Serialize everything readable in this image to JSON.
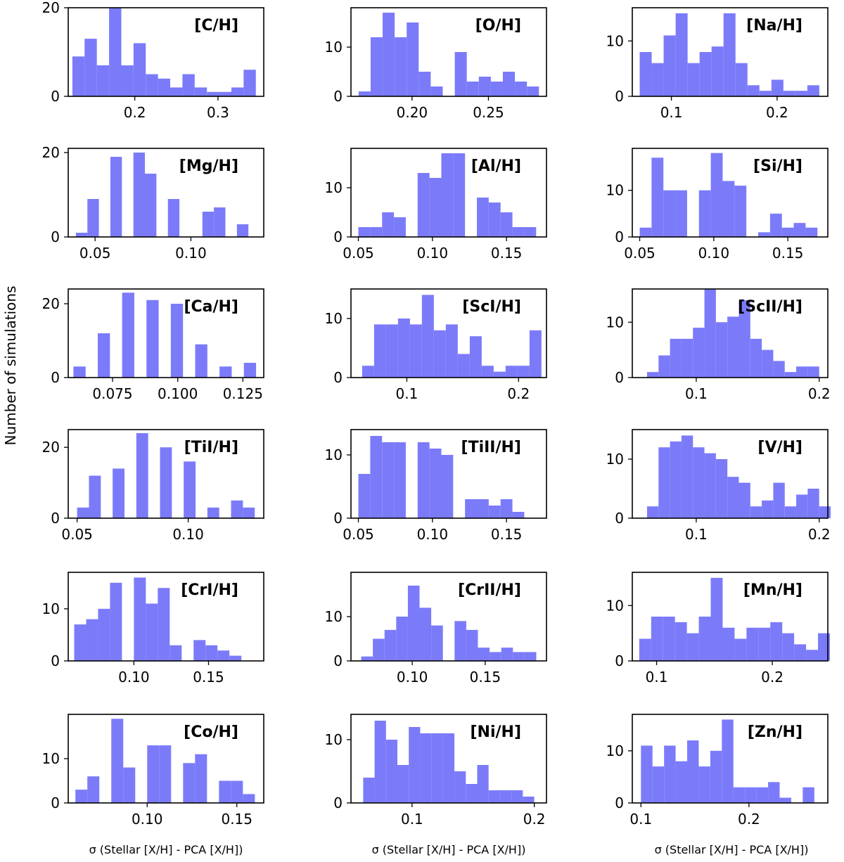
{
  "figure": {
    "ylabel": "Number of simulations",
    "xlabels": [
      "σ (Stellar [X/H] - PCA [X/H])",
      "σ (Stellar [X/H] - PCA [X/H])",
      "σ (Stellar [X/H] - PCA [X/H])"
    ],
    "bar_color": "#7b7bfa"
  },
  "chart_data": [
    {
      "type": "bar",
      "title": "[C/H]",
      "xlim": [
        0.12,
        0.355
      ],
      "ylim": [
        0,
        20
      ],
      "xticks": [
        {
          "v": 0.2,
          "l": "0.2"
        },
        {
          "v": 0.3,
          "l": "0.3"
        }
      ],
      "yticks": [
        {
          "v": 0,
          "l": "0"
        },
        {
          "v": 20,
          "l": "20"
        }
      ],
      "bin_start": 0.125,
      "bin_width": 0.0147,
      "values": [
        9,
        13,
        7,
        20,
        7,
        12,
        5,
        4,
        2,
        5,
        2,
        1,
        1,
        2,
        6
      ]
    },
    {
      "type": "bar",
      "title": "[O/H]",
      "xlim": [
        0.16,
        0.288
      ],
      "ylim": [
        0,
        18
      ],
      "xticks": [
        {
          "v": 0.2,
          "l": "0.20"
        },
        {
          "v": 0.25,
          "l": "0.25"
        }
      ],
      "yticks": [
        {
          "v": 0,
          "l": "0"
        },
        {
          "v": 10,
          "l": "10"
        }
      ],
      "bin_start": 0.165,
      "bin_width": 0.00787,
      "values": [
        1,
        12,
        17,
        12,
        15,
        5,
        2,
        0,
        9,
        3,
        4,
        3,
        5,
        3,
        2
      ]
    },
    {
      "type": "bar",
      "title": "[Na/H]",
      "xlim": [
        0.063,
        0.248
      ],
      "ylim": [
        0,
        16
      ],
      "xticks": [
        {
          "v": 0.1,
          "l": "0.1"
        },
        {
          "v": 0.2,
          "l": "0.2"
        }
      ],
      "yticks": [
        {
          "v": 0,
          "l": "0"
        },
        {
          "v": 10,
          "l": "10"
        }
      ],
      "bin_start": 0.07,
      "bin_width": 0.01133,
      "values": [
        8,
        6,
        11,
        15,
        6,
        8,
        9,
        15,
        6,
        2,
        1,
        3,
        1,
        1,
        2
      ]
    },
    {
      "type": "bar",
      "title": "[Mg/H]",
      "xlim": [
        0.036,
        0.138
      ],
      "ylim": [
        0,
        21
      ],
      "xticks": [
        {
          "v": 0.05,
          "l": "0.05"
        },
        {
          "v": 0.1,
          "l": "0.10"
        }
      ],
      "yticks": [
        {
          "v": 0,
          "l": "0"
        },
        {
          "v": 20,
          "l": "20"
        }
      ],
      "bin_start": 0.04,
      "bin_width": 0.006,
      "values": [
        1,
        9,
        0,
        19,
        0,
        20,
        15,
        0,
        9,
        0,
        0,
        6,
        7,
        0,
        3
      ]
    },
    {
      "type": "bar",
      "title": "[Al/H]",
      "xlim": [
        0.045,
        0.177
      ],
      "ylim": [
        0,
        18
      ],
      "xticks": [
        {
          "v": 0.05,
          "l": "0.05"
        },
        {
          "v": 0.1,
          "l": "0.10"
        },
        {
          "v": 0.15,
          "l": "0.15"
        }
      ],
      "yticks": [
        {
          "v": 0,
          "l": "0"
        },
        {
          "v": 10,
          "l": "10"
        }
      ],
      "bin_start": 0.05,
      "bin_width": 0.008,
      "values": [
        2,
        2,
        5,
        4,
        0,
        13,
        12,
        17,
        17,
        0,
        8,
        7,
        5,
        2,
        2
      ]
    },
    {
      "type": "bar",
      "title": "[Si/H]",
      "xlim": [
        0.045,
        0.177
      ],
      "ylim": [
        0,
        19
      ],
      "xticks": [
        {
          "v": 0.05,
          "l": "0.05"
        },
        {
          "v": 0.1,
          "l": "0.10"
        },
        {
          "v": 0.15,
          "l": "0.15"
        }
      ],
      "yticks": [
        {
          "v": 0,
          "l": "0"
        },
        {
          "v": 10,
          "l": "10"
        }
      ],
      "bin_start": 0.05,
      "bin_width": 0.008,
      "values": [
        2,
        17,
        10,
        10,
        0,
        10,
        18,
        12,
        11,
        0,
        1,
        5,
        2,
        3,
        2
      ]
    },
    {
      "type": "bar",
      "title": "[Ca/H]",
      "xlim": [
        0.058,
        0.133
      ],
      "ylim": [
        0,
        24
      ],
      "xticks": [
        {
          "v": 0.075,
          "l": "0.075"
        },
        {
          "v": 0.1,
          "l": "0.100"
        },
        {
          "v": 0.125,
          "l": "0.125"
        }
      ],
      "yticks": [
        {
          "v": 0,
          "l": "0"
        },
        {
          "v": 20,
          "l": "20"
        }
      ],
      "bin_start": 0.06,
      "bin_width": 0.00467,
      "values": [
        3,
        0,
        12,
        0,
        23,
        0,
        21,
        0,
        20,
        0,
        9,
        0,
        3,
        0,
        4
      ]
    },
    {
      "type": "bar",
      "title": "[ScI/H]",
      "xlim": [
        0.05,
        0.225
      ],
      "ylim": [
        0,
        15
      ],
      "xticks": [
        {
          "v": 0.1,
          "l": "0.1"
        },
        {
          "v": 0.2,
          "l": "0.2"
        }
      ],
      "yticks": [
        {
          "v": 0,
          "l": "0"
        },
        {
          "v": 10,
          "l": "10"
        }
      ],
      "bin_start": 0.06,
      "bin_width": 0.0107,
      "values": [
        2,
        9,
        9,
        10,
        9,
        14,
        8,
        9,
        4,
        7,
        2,
        1,
        2,
        2,
        8
      ]
    },
    {
      "type": "bar",
      "title": "[ScII/H]",
      "xlim": [
        0.048,
        0.207
      ],
      "ylim": [
        0,
        16
      ],
      "xticks": [
        {
          "v": 0.1,
          "l": "0.1"
        },
        {
          "v": 0.2,
          "l": "0.2"
        }
      ],
      "yticks": [
        {
          "v": 0,
          "l": "0"
        },
        {
          "v": 10,
          "l": "10"
        }
      ],
      "bin_start": 0.06,
      "bin_width": 0.00933,
      "values": [
        1,
        4,
        7,
        7,
        9,
        16,
        10,
        11,
        14,
        7,
        5,
        3,
        1,
        2,
        2
      ]
    },
    {
      "type": "bar",
      "title": "[TiI/H]",
      "xlim": [
        0.046,
        0.134
      ],
      "ylim": [
        0,
        25
      ],
      "xticks": [
        {
          "v": 0.05,
          "l": "0.05"
        },
        {
          "v": 0.1,
          "l": "0.10"
        }
      ],
      "yticks": [
        {
          "v": 0,
          "l": "0"
        },
        {
          "v": 20,
          "l": "20"
        }
      ],
      "bin_start": 0.05,
      "bin_width": 0.00533,
      "values": [
        3,
        12,
        0,
        14,
        0,
        24,
        0,
        20,
        0,
        16,
        0,
        3,
        0,
        5,
        3
      ]
    },
    {
      "type": "bar",
      "title": "[TiII/H]",
      "xlim": [
        0.045,
        0.177
      ],
      "ylim": [
        0,
        14
      ],
      "xticks": [
        {
          "v": 0.05,
          "l": "0.05"
        },
        {
          "v": 0.1,
          "l": "0.10"
        },
        {
          "v": 0.15,
          "l": "0.15"
        }
      ],
      "yticks": [
        {
          "v": 0,
          "l": "0"
        },
        {
          "v": 10,
          "l": "10"
        }
      ],
      "bin_start": 0.05,
      "bin_width": 0.008,
      "values": [
        7,
        13,
        12,
        12,
        0,
        12,
        11,
        10,
        0,
        3,
        3,
        2,
        3,
        1,
        0
      ]
    },
    {
      "type": "bar",
      "title": "[V/H]",
      "xlim": [
        0.048,
        0.207
      ],
      "ylim": [
        0,
        15
      ],
      "xticks": [
        {
          "v": 0.1,
          "l": "0.1"
        },
        {
          "v": 0.2,
          "l": "0.2"
        }
      ],
      "yticks": [
        {
          "v": 0,
          "l": "0"
        },
        {
          "v": 10,
          "l": "10"
        }
      ],
      "bin_start": 0.06,
      "bin_width": 0.00933,
      "values": [
        2,
        12,
        13,
        14,
        12,
        11,
        10,
        7,
        6,
        2,
        3,
        6,
        2,
        4,
        5,
        2
      ]
    },
    {
      "type": "bar",
      "title": "[CrI/H]",
      "xlim": [
        0.056,
        0.187
      ],
      "ylim": [
        0,
        17
      ],
      "xticks": [
        {
          "v": 0.1,
          "l": "0.10"
        },
        {
          "v": 0.15,
          "l": "0.15"
        }
      ],
      "yticks": [
        {
          "v": 0,
          "l": "0"
        },
        {
          "v": 10,
          "l": "10"
        }
      ],
      "bin_start": 0.06,
      "bin_width": 0.008,
      "values": [
        7,
        8,
        10,
        15,
        0,
        16,
        11,
        14,
        3,
        0,
        4,
        3,
        2,
        1
      ]
    },
    {
      "type": "bar",
      "title": "[CrII/H]",
      "xlim": [
        0.058,
        0.192
      ],
      "ylim": [
        0,
        20
      ],
      "xticks": [
        {
          "v": 0.1,
          "l": "0.10"
        },
        {
          "v": 0.15,
          "l": "0.15"
        }
      ],
      "yticks": [
        {
          "v": 0,
          "l": "0"
        },
        {
          "v": 10,
          "l": "10"
        }
      ],
      "bin_start": 0.065,
      "bin_width": 0.008,
      "values": [
        1,
        5,
        7,
        10,
        17,
        12,
        8,
        0,
        9,
        7,
        3,
        2,
        3,
        2,
        2
      ]
    },
    {
      "type": "bar",
      "title": "[Mn/H]",
      "xlim": [
        0.079,
        0.248
      ],
      "ylim": [
        0,
        16
      ],
      "xticks": [
        {
          "v": 0.1,
          "l": "0.1"
        },
        {
          "v": 0.2,
          "l": "0.2"
        }
      ],
      "yticks": [
        {
          "v": 0,
          "l": "0"
        },
        {
          "v": 10,
          "l": "10"
        }
      ],
      "bin_start": 0.085,
      "bin_width": 0.0103,
      "values": [
        4,
        8,
        8,
        7,
        5,
        8,
        15,
        6,
        4,
        6,
        6,
        7,
        5,
        3,
        2,
        5
      ]
    },
    {
      "type": "bar",
      "title": "[Co/H]",
      "xlim": [
        0.056,
        0.165
      ],
      "ylim": [
        0,
        20
      ],
      "xticks": [
        {
          "v": 0.1,
          "l": "0.10"
        },
        {
          "v": 0.15,
          "l": "0.15"
        }
      ],
      "yticks": [
        {
          "v": 0,
          "l": "0"
        },
        {
          "v": 10,
          "l": "10"
        }
      ],
      "bin_start": 0.06,
      "bin_width": 0.00667,
      "values": [
        3,
        6,
        0,
        19,
        8,
        0,
        13,
        13,
        0,
        9,
        11,
        0,
        5,
        5,
        2
      ]
    },
    {
      "type": "bar",
      "title": "[Ni/H]",
      "xlim": [
        0.05,
        0.21
      ],
      "ylim": [
        0,
        14
      ],
      "xticks": [
        {
          "v": 0.1,
          "l": "0.1"
        },
        {
          "v": 0.2,
          "l": "0.2"
        }
      ],
      "yticks": [
        {
          "v": 0,
          "l": "0"
        },
        {
          "v": 10,
          "l": "10"
        }
      ],
      "bin_start": 0.06,
      "bin_width": 0.00933,
      "values": [
        4,
        13,
        10,
        6,
        12,
        11,
        11,
        11,
        5,
        3,
        6,
        2,
        2,
        2,
        1
      ]
    },
    {
      "type": "bar",
      "title": "[Zn/H]",
      "xlim": [
        0.092,
        0.273
      ],
      "ylim": [
        0,
        17
      ],
      "xticks": [
        {
          "v": 0.1,
          "l": "0.1"
        },
        {
          "v": 0.2,
          "l": "0.2"
        }
      ],
      "yticks": [
        {
          "v": 0,
          "l": "0"
        },
        {
          "v": 10,
          "l": "10"
        }
      ],
      "bin_start": 0.1,
      "bin_width": 0.0107,
      "values": [
        11,
        7,
        11,
        8,
        12,
        7,
        10,
        16,
        3,
        3,
        3,
        4,
        1,
        0,
        3
      ]
    }
  ]
}
